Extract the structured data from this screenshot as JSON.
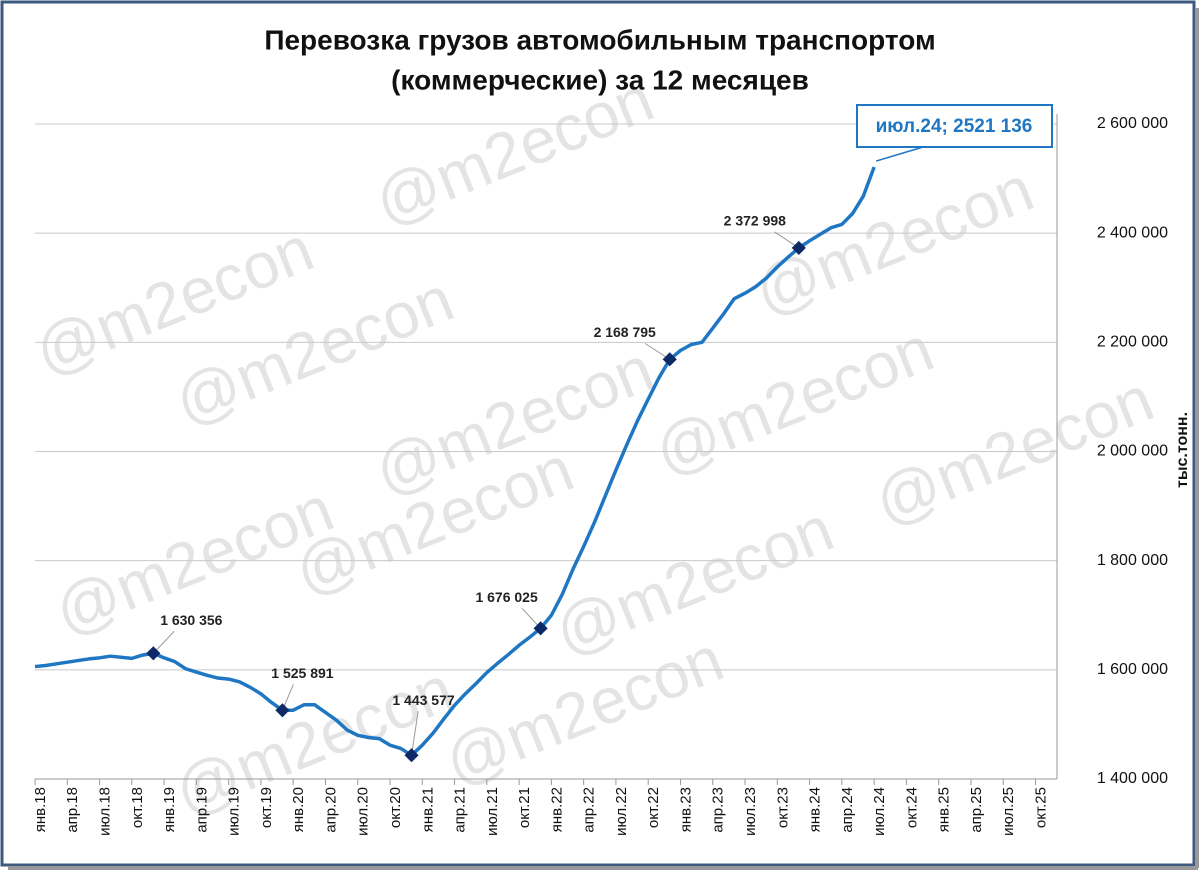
{
  "chart_data": {
    "type": "line",
    "title": "Перевозка грузов автомобильным транспортом",
    "subtitle": "(коммерческие) за 12 месяцев",
    "y_axis_label": "тыс.тонн.",
    "watermark": "@m2econ",
    "categories": [
      "янв.18",
      null,
      null,
      "апр.18",
      null,
      null,
      "июл.18",
      null,
      null,
      "окт.18",
      null,
      null,
      "янв.19",
      null,
      null,
      "апр.19",
      null,
      null,
      "июл.19",
      null,
      null,
      "окт.19",
      null,
      null,
      "янв.20",
      null,
      null,
      "апр.20",
      null,
      null,
      "июл.20",
      null,
      null,
      "окт.20",
      null,
      null,
      "янв.21",
      null,
      null,
      "апр.21",
      null,
      null,
      "июл.21",
      null,
      null,
      "окт.21",
      null,
      null,
      "янв.22",
      null,
      null,
      "апр.22",
      null,
      null,
      "июл.22",
      null,
      null,
      "окт.22",
      null,
      null,
      "янв.23",
      null,
      null,
      "апр.23",
      null,
      null,
      "июл.23",
      null,
      null,
      "окт.23",
      null,
      null,
      "янв.24",
      null,
      null,
      "апр.24",
      null,
      null,
      "июл.24",
      null,
      null,
      "окт.24",
      null,
      null,
      "янв.25",
      null,
      null,
      "апр.25",
      null,
      null,
      "июл.25",
      null,
      null,
      "окт.25",
      null,
      null
    ],
    "series": [
      {
        "name": "Перевозка грузов",
        "color": "#1f77c4",
        "values": [
          1606000,
          1608000,
          1611000,
          1614000,
          1617000,
          1620000,
          1622000,
          1625000,
          1623000,
          1621000,
          1627000,
          1630356,
          1622000,
          1615000,
          1602000,
          1596000,
          1590000,
          1585000,
          1583000,
          1578000,
          1568000,
          1556000,
          1540000,
          1525891,
          1526000,
          1536000,
          1536000,
          1522000,
          1508000,
          1490000,
          1480000,
          1476000,
          1474000,
          1462000,
          1456000,
          1443577,
          1462000,
          1484000,
          1510000,
          1535000,
          1556000,
          1575000,
          1595000,
          1612000,
          1628000,
          1645000,
          1660000,
          1676025,
          1700000,
          1738000,
          1784000,
          1826000,
          1870000,
          1918000,
          1966000,
          2012000,
          2056000,
          2096000,
          2135000,
          2168795,
          2185000,
          2196000,
          2200000,
          2226000,
          2252000,
          2280000,
          2290000,
          2302000,
          2318000,
          2338000,
          2356000,
          2372998,
          2386000,
          2398000,
          2410000,
          2416000,
          2436000,
          2468000,
          2521136,
          null,
          null,
          null,
          null,
          null,
          null,
          null,
          null,
          null,
          null,
          null,
          null,
          null,
          null,
          null,
          null,
          null
        ],
        "value_labels": [
          null,
          null,
          null,
          null,
          null,
          null,
          null,
          null,
          null,
          null,
          null,
          "1 630 356",
          null,
          null,
          null,
          null,
          null,
          null,
          null,
          null,
          null,
          null,
          null,
          "1 525 891",
          null,
          null,
          null,
          null,
          null,
          null,
          null,
          null,
          null,
          null,
          null,
          "1 443 577",
          null,
          null,
          null,
          null,
          null,
          null,
          null,
          null,
          null,
          null,
          null,
          "1 676 025",
          null,
          null,
          null,
          null,
          null,
          null,
          null,
          null,
          null,
          null,
          null,
          "2 168 795",
          null,
          null,
          null,
          null,
          null,
          null,
          null,
          null,
          null,
          null,
          null,
          "2 372 998",
          null,
          null,
          null,
          null,
          null,
          null,
          "июл.24; 2521 136",
          null,
          null,
          null,
          null,
          null,
          null,
          null,
          null,
          null,
          null,
          null,
          null,
          null,
          null,
          null,
          null,
          null
        ]
      }
    ],
    "ylim": [
      1400000,
      2600000
    ],
    "yticks": [
      {
        "value": 1400000,
        "label": "1 400 000"
      },
      {
        "value": 1600000,
        "label": "1 600 000"
      },
      {
        "value": 1800000,
        "label": "1 800 000"
      },
      {
        "value": 2000000,
        "label": "2 000 000"
      },
      {
        "value": 2200000,
        "label": "2 200 000"
      },
      {
        "value": 2400000,
        "label": "2 400 000"
      },
      {
        "value": 2600000,
        "label": "2 600 000"
      }
    ],
    "grid": true,
    "y_axis_side": "right"
  }
}
